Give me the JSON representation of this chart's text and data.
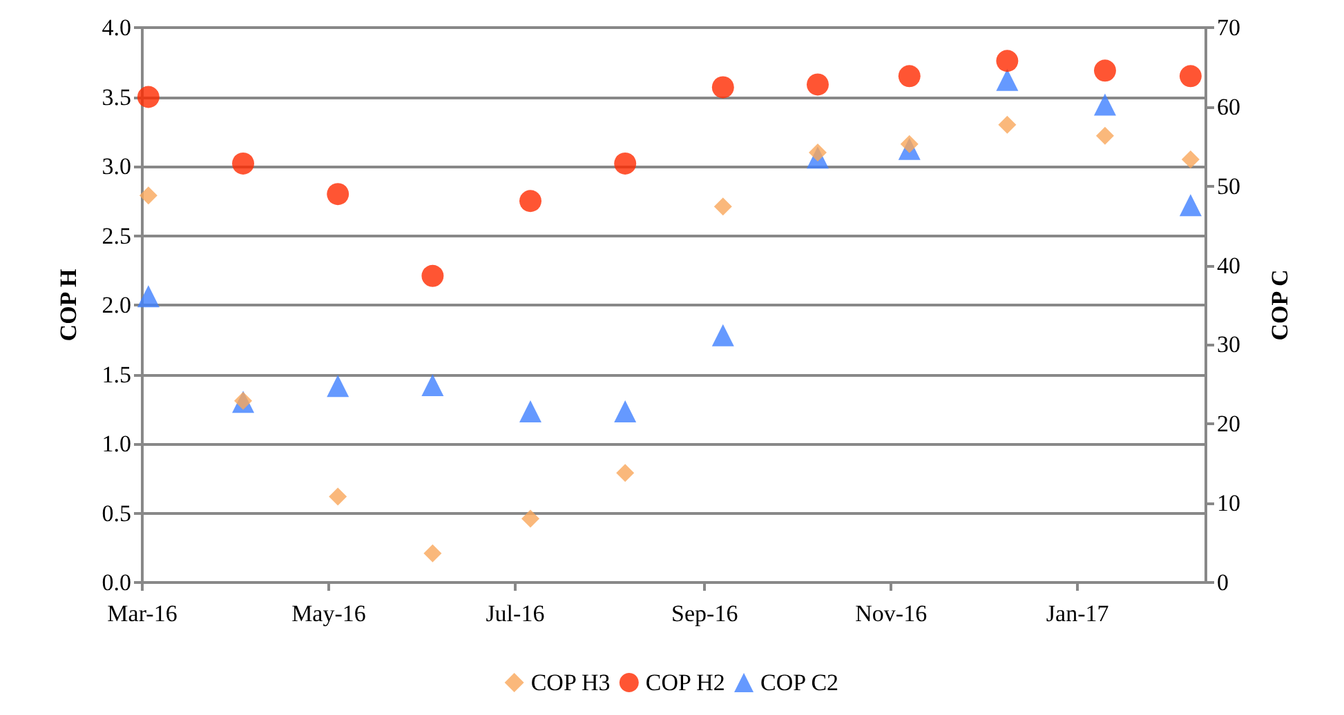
{
  "chart_data": {
    "type": "scatter",
    "ylabel": "COP H",
    "y2label": "COP C",
    "x": [
      "2016-03-03",
      "2016-04-03",
      "2016-05-04",
      "2016-06-04",
      "2016-07-06",
      "2016-08-06",
      "2016-09-07",
      "2016-10-08",
      "2016-11-07",
      "2016-12-09",
      "2017-01-10",
      "2017-02-07"
    ],
    "series": [
      {
        "name": "COP H3",
        "color": "#f9a65a",
        "marker": "diamond",
        "values": [
          2.79,
          1.31,
          0.62,
          0.21,
          0.46,
          0.79,
          2.71,
          3.1,
          3.16,
          3.3,
          3.22,
          3.05
        ]
      },
      {
        "name": "COP H2",
        "color": "#ff2a00",
        "marker": "circle",
        "values": [
          3.5,
          3.02,
          2.8,
          2.21,
          2.75,
          3.02,
          3.57,
          3.59,
          3.65,
          3.76,
          3.69,
          3.65
        ]
      },
      {
        "name": "COP C2",
        "color": "#3f80ff",
        "marker": "triangle",
        "axis": "y2",
        "values": [
          36.1,
          22.8,
          24.8,
          24.9,
          21.6,
          21.6,
          31.2,
          53.6,
          54.7,
          63.4,
          60.3,
          47.6
        ]
      }
    ],
    "xlim": [
      "2016-03-01",
      "2017-02-12"
    ],
    "xticks": [
      {
        "value": "2016-03-01",
        "label": "Mar-16"
      },
      {
        "value": "2016-05-01",
        "label": "May-16"
      },
      {
        "value": "2016-07-01",
        "label": "Jul-16"
      },
      {
        "value": "2016-09-01",
        "label": "Sep-16"
      },
      {
        "value": "2016-11-01",
        "label": "Nov-16"
      },
      {
        "value": "2017-01-01",
        "label": "Jan-17"
      }
    ],
    "ylim": [
      0,
      4
    ],
    "yticks": [
      {
        "value": 0,
        "label": "0.0"
      },
      {
        "value": 0.5,
        "label": "0.5"
      },
      {
        "value": 1,
        "label": "1.0"
      },
      {
        "value": 1.5,
        "label": "1.5"
      },
      {
        "value": 2,
        "label": "2.0"
      },
      {
        "value": 2.5,
        "label": "2.5"
      },
      {
        "value": 3,
        "label": "3.0"
      },
      {
        "value": 3.5,
        "label": "3.5"
      },
      {
        "value": 4,
        "label": "4.0"
      }
    ],
    "y2lim": [
      0,
      70
    ],
    "y2ticks": [
      0,
      10,
      20,
      30,
      40,
      50,
      60,
      70
    ],
    "grid": "y",
    "legend": "bottom"
  }
}
